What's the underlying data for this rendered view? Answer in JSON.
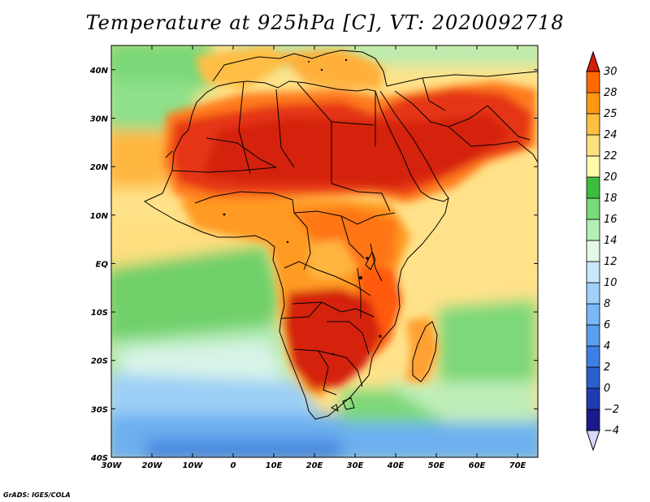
{
  "title": "Temperature at 925hPa [C], VT: 2020092718",
  "credit": "GrADS: IGES/COLA",
  "map": {
    "lon_range": [
      -30,
      75
    ],
    "lat_range": [
      -40,
      45
    ],
    "lon_ticks": [
      {
        "value": -30,
        "label": "30W"
      },
      {
        "value": -20,
        "label": "20W"
      },
      {
        "value": -10,
        "label": "10W"
      },
      {
        "value": 0,
        "label": "0"
      },
      {
        "value": 10,
        "label": "10E"
      },
      {
        "value": 20,
        "label": "20E"
      },
      {
        "value": 30,
        "label": "30E"
      },
      {
        "value": 40,
        "label": "40E"
      },
      {
        "value": 50,
        "label": "50E"
      },
      {
        "value": 60,
        "label": "60E"
      },
      {
        "value": 70,
        "label": "70E"
      }
    ],
    "lat_ticks": [
      {
        "value": 40,
        "label": "40N"
      },
      {
        "value": 30,
        "label": "30N"
      },
      {
        "value": 20,
        "label": "20N"
      },
      {
        "value": 10,
        "label": "10N"
      },
      {
        "value": 0,
        "label": "EQ"
      },
      {
        "value": -10,
        "label": "10S"
      },
      {
        "value": -20,
        "label": "20S"
      },
      {
        "value": -30,
        "label": "30S"
      },
      {
        "value": -40,
        "label": "40S"
      }
    ]
  },
  "colorbar": {
    "levels": [
      "-4",
      "-2",
      "0",
      "2",
      "4",
      "6",
      "8",
      "10",
      "12",
      "14",
      "16",
      "18",
      "20",
      "22",
      "24",
      "25",
      "28",
      "30"
    ],
    "colors": [
      "#1a1a8c",
      "#1f3cb4",
      "#2a5fd0",
      "#3c80e6",
      "#5a9ef0",
      "#7ab8f6",
      "#a0d0fa",
      "#c8e8fc",
      "#e6f8e6",
      "#b4f0b4",
      "#78dc78",
      "#3cbe3c",
      "#fffaaa",
      "#ffe080",
      "#ffc040",
      "#ff9a10",
      "#ff6a00",
      "#e83a10",
      "#d22008"
    ]
  }
}
